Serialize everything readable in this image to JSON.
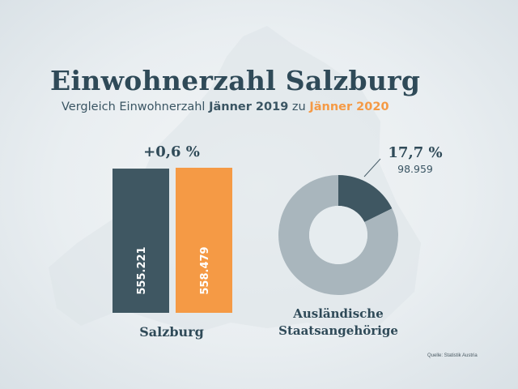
{
  "title": "Einwohnerzahl Salzburg",
  "subtitle": {
    "prefix": "Vergleich Einwohnerzahl ",
    "year_2019": "Jänner 2019",
    "connector": " zu ",
    "year_2020": "Jänner 2020"
  },
  "colors": {
    "dark": "#3f5762",
    "orange": "#f59a45",
    "donut_rest": "#a9b6bd",
    "text": "#2f4a58"
  },
  "source": "Quelle: Statistik Austria",
  "chart_data": [
    {
      "type": "bar",
      "categories": [
        "Jänner 2019",
        "Jänner 2020"
      ],
      "values": [
        555221,
        558479
      ],
      "value_labels": [
        "555.221",
        "558.479"
      ],
      "colors": [
        "#3f5762",
        "#f59a45"
      ],
      "change_label": "+0,6 %",
      "xlabel": "Salzburg",
      "ylim": [
        0,
        558479
      ]
    },
    {
      "type": "pie",
      "donut": true,
      "slices": [
        {
          "share": 17.7,
          "value": 98959,
          "color": "#3f5762"
        },
        {
          "share": 82.3,
          "color": "#a9b6bd"
        }
      ],
      "highlight_percent": "17,7 %",
      "highlight_value": "98.959",
      "label_line1": "Ausländische",
      "label_line2": "Staatsangehörige"
    }
  ]
}
